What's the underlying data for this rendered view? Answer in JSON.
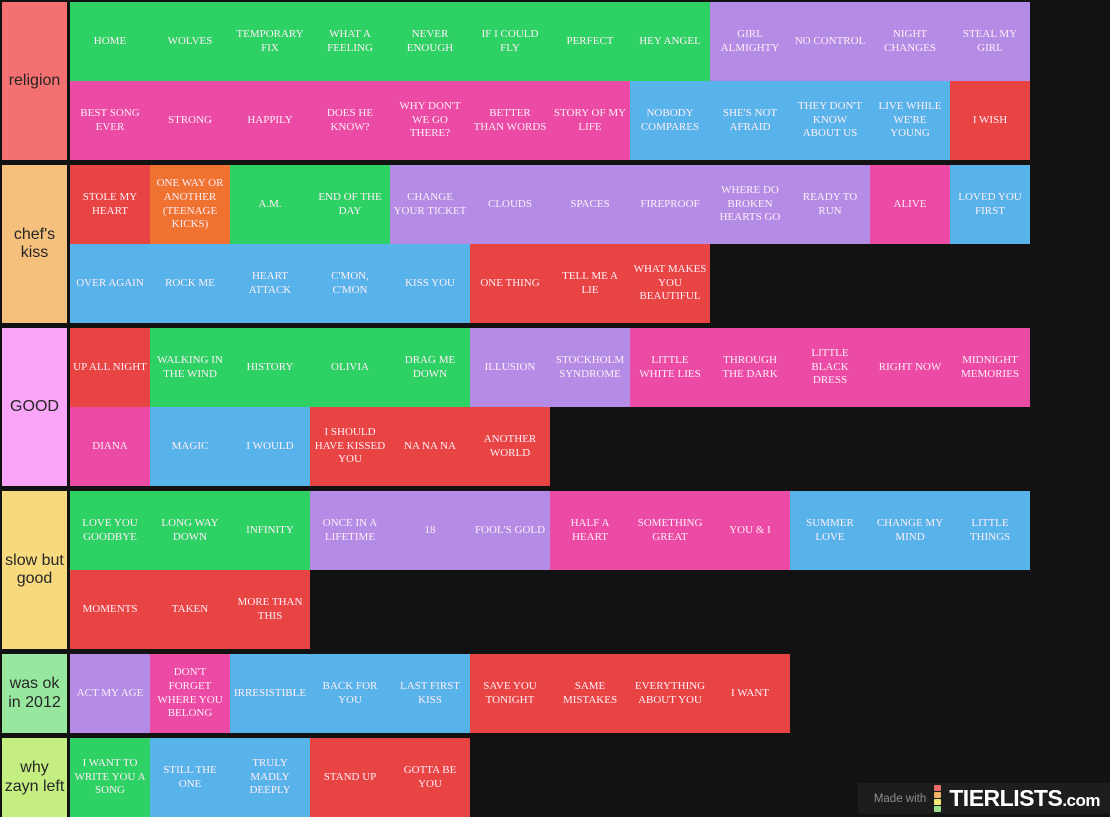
{
  "colors": {
    "background": "#121212",
    "cell_text": "#ffeef7",
    "tier_text": "#262626",
    "green": "#2ed164",
    "purple": "#b48ce6",
    "pink": "#eb4aa5",
    "blue": "#57b3ea",
    "red": "#e94444",
    "orange": "#ef7231"
  },
  "tiers": [
    {
      "label": "religion",
      "label_color": "#f57070",
      "rows": [
        [
          {
            "t": "HOME",
            "c": "green"
          },
          {
            "t": "WOLVES",
            "c": "green"
          },
          {
            "t": "TEMPORARY FIX",
            "c": "green"
          },
          {
            "t": "WHAT A FEELING",
            "c": "green"
          },
          {
            "t": "NEVER ENOUGH",
            "c": "green"
          },
          {
            "t": "IF I COULD FLY",
            "c": "green"
          },
          {
            "t": "PERFECT",
            "c": "green"
          },
          {
            "t": "HEY ANGEL",
            "c": "green"
          },
          {
            "t": "GIRL ALMIGHTY",
            "c": "purple"
          },
          {
            "t": "NO CONTROL",
            "c": "purple"
          },
          {
            "t": "NIGHT CHANGES",
            "c": "purple"
          },
          {
            "t": "STEAL MY GIRL",
            "c": "purple"
          }
        ],
        [
          {
            "t": "BEST SONG EVER",
            "c": "pink"
          },
          {
            "t": "STRONG",
            "c": "pink"
          },
          {
            "t": "HAPPILY",
            "c": "pink"
          },
          {
            "t": "DOES HE KNOW?",
            "c": "pink"
          },
          {
            "t": "WHY DON'T WE GO THERE?",
            "c": "pink"
          },
          {
            "t": "BETTER THAN WORDS",
            "c": "pink"
          },
          {
            "t": "STORY OF MY LIFE",
            "c": "pink"
          },
          {
            "t": "NOBODY COMPARES",
            "c": "blue"
          },
          {
            "t": "SHE'S NOT AFRAID",
            "c": "blue"
          },
          {
            "t": "THEY DON'T KNOW ABOUT US",
            "c": "blue"
          },
          {
            "t": "LIVE WHILE WE'RE YOUNG",
            "c": "blue"
          },
          {
            "t": "I WISH",
            "c": "red"
          }
        ]
      ]
    },
    {
      "label": "chef's kiss",
      "label_color": "#f5c07c",
      "rows": [
        [
          {
            "t": "STOLE MY HEART",
            "c": "red"
          },
          {
            "t": "ONE WAY OR ANOTHER (TEENAGE KICKS)",
            "c": "orange"
          },
          {
            "t": "A.M.",
            "c": "green"
          },
          {
            "t": "END OF THE DAY",
            "c": "green"
          },
          {
            "t": "CHANGE YOUR TICKET",
            "c": "purple"
          },
          {
            "t": "CLOUDS",
            "c": "purple"
          },
          {
            "t": "SPACES",
            "c": "purple"
          },
          {
            "t": "FIREPROOF",
            "c": "purple"
          },
          {
            "t": "WHERE DO BROKEN HEARTS GO",
            "c": "purple"
          },
          {
            "t": "READY TO RUN",
            "c": "purple"
          },
          {
            "t": "ALIVE",
            "c": "pink"
          },
          {
            "t": "LOVED YOU FIRST",
            "c": "blue"
          }
        ],
        [
          {
            "t": "OVER AGAIN",
            "c": "blue"
          },
          {
            "t": "ROCK ME",
            "c": "blue"
          },
          {
            "t": "HEART ATTACK",
            "c": "blue"
          },
          {
            "t": "C'MON, C'MON",
            "c": "blue"
          },
          {
            "t": "KISS YOU",
            "c": "blue"
          },
          {
            "t": "ONE THING",
            "c": "red"
          },
          {
            "t": "TELL ME A LIE",
            "c": "red"
          },
          {
            "t": "WHAT MAKES YOU BEAUTIFUL",
            "c": "red"
          }
        ]
      ]
    },
    {
      "label": "GOOD",
      "label_color": "#f9a6f9",
      "rows": [
        [
          {
            "t": "UP ALL NIGHT",
            "c": "red"
          },
          {
            "t": "WALKING IN THE WIND",
            "c": "green"
          },
          {
            "t": "HISTORY",
            "c": "green"
          },
          {
            "t": "OLIVIA",
            "c": "green"
          },
          {
            "t": "DRAG ME DOWN",
            "c": "green"
          },
          {
            "t": "ILLUSION",
            "c": "purple"
          },
          {
            "t": "STOCKHOLM SYNDROME",
            "c": "purple"
          },
          {
            "t": "LITTLE WHITE LIES",
            "c": "pink"
          },
          {
            "t": "THROUGH THE DARK",
            "c": "pink"
          },
          {
            "t": "LITTLE BLACK DRESS",
            "c": "pink"
          },
          {
            "t": "RIGHT NOW",
            "c": "pink"
          },
          {
            "t": "MIDNIGHT MEMORIES",
            "c": "pink"
          }
        ],
        [
          {
            "t": "DIANA",
            "c": "pink"
          },
          {
            "t": "MAGIC",
            "c": "blue"
          },
          {
            "t": "I WOULD",
            "c": "blue"
          },
          {
            "t": "I SHOULD HAVE KISSED YOU",
            "c": "red"
          },
          {
            "t": "NA NA NA",
            "c": "red"
          },
          {
            "t": "ANOTHER WORLD",
            "c": "red"
          }
        ]
      ]
    },
    {
      "label": "slow but good",
      "label_color": "#f7da7e",
      "rows": [
        [
          {
            "t": "LOVE YOU GOODBYE",
            "c": "green"
          },
          {
            "t": "LONG WAY DOWN",
            "c": "green"
          },
          {
            "t": "INFINITY",
            "c": "green"
          },
          {
            "t": "ONCE IN A LIFETIME",
            "c": "purple"
          },
          {
            "t": "18",
            "c": "purple"
          },
          {
            "t": "FOOL'S GOLD",
            "c": "purple"
          },
          {
            "t": "HALF A HEART",
            "c": "pink"
          },
          {
            "t": "SOMETHING GREAT",
            "c": "pink"
          },
          {
            "t": "YOU & I",
            "c": "pink"
          },
          {
            "t": "SUMMER LOVE",
            "c": "blue"
          },
          {
            "t": "CHANGE MY MIND",
            "c": "blue"
          },
          {
            "t": "LITTLE THINGS",
            "c": "blue"
          }
        ],
        [
          {
            "t": "MOMENTS",
            "c": "red"
          },
          {
            "t": "TAKEN",
            "c": "red"
          },
          {
            "t": "MORE THAN THIS",
            "c": "red"
          }
        ]
      ]
    },
    {
      "label": "was ok in 2012",
      "label_color": "#98e79f",
      "rows": [
        [
          {
            "t": "ACT MY AGE",
            "c": "purple"
          },
          {
            "t": "DON'T FORGET WHERE YOU BELONG",
            "c": "pink"
          },
          {
            "t": "IRRESISTIBLE",
            "c": "blue"
          },
          {
            "t": "BACK FOR YOU",
            "c": "blue"
          },
          {
            "t": "LAST FIRST KISS",
            "c": "blue"
          },
          {
            "t": "SAVE YOU TONIGHT",
            "c": "red"
          },
          {
            "t": "SAME MISTAKES",
            "c": "red"
          },
          {
            "t": "EVERYTHING ABOUT YOU",
            "c": "red"
          },
          {
            "t": "I WANT",
            "c": "red"
          }
        ]
      ]
    },
    {
      "label": "why zayn left",
      "label_color": "#c4ee80",
      "rows": [
        [
          {
            "t": "I WANT TO WRITE YOU A SONG",
            "c": "green"
          },
          {
            "t": "STILL THE ONE",
            "c": "blue"
          },
          {
            "t": "TRULY MADLY DEEPLY",
            "c": "blue"
          },
          {
            "t": "STAND UP",
            "c": "red"
          },
          {
            "t": "GOTTA BE YOU",
            "c": "red"
          }
        ]
      ]
    }
  ],
  "watermark": {
    "made_with": "Made with",
    "brand": "TIERLISTS",
    "brand_suffix": ".com",
    "icon_colors": [
      "#ef6d6d",
      "#f3b169",
      "#f4ea72",
      "#9de08b"
    ]
  }
}
